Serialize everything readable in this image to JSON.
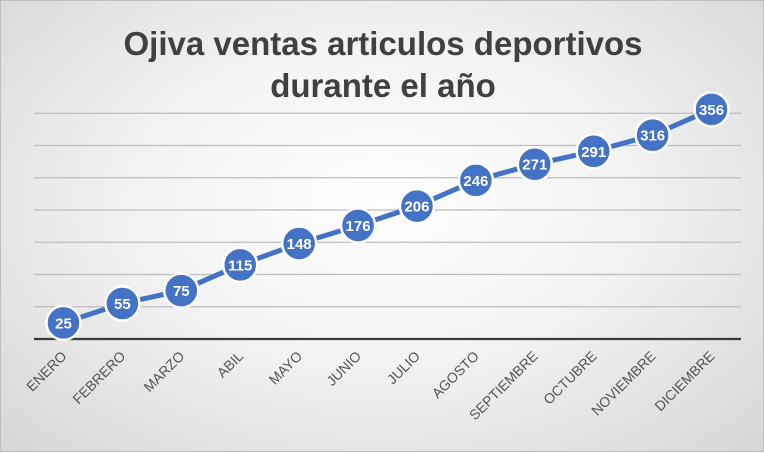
{
  "chart_data": {
    "type": "line",
    "title": "Ojiva ventas articulos deportivos\ndurante el año",
    "xlabel": "",
    "ylabel": "",
    "categories": [
      "ENERO",
      "FEBRERO",
      "MARZO",
      "ABIL",
      "MAYO",
      "JUNIO",
      "JULIO",
      "AGOSTO",
      "SEPTIEMBRE",
      "OCTUBRE",
      "NOVIEMBRE",
      "DICIEMBRE"
    ],
    "series": [
      {
        "values": [
          25,
          55,
          75,
          115,
          148,
          176,
          206,
          246,
          271,
          291,
          316,
          356
        ]
      }
    ],
    "ylim": [
      0,
      400
    ],
    "y_gridline_step": 50,
    "grid": true,
    "data_labels": true,
    "legend": "none",
    "colors": {
      "series": "#4472c4",
      "title": "#404040",
      "axis": "#3a3a3a",
      "grid": "#bdbdbd"
    }
  }
}
